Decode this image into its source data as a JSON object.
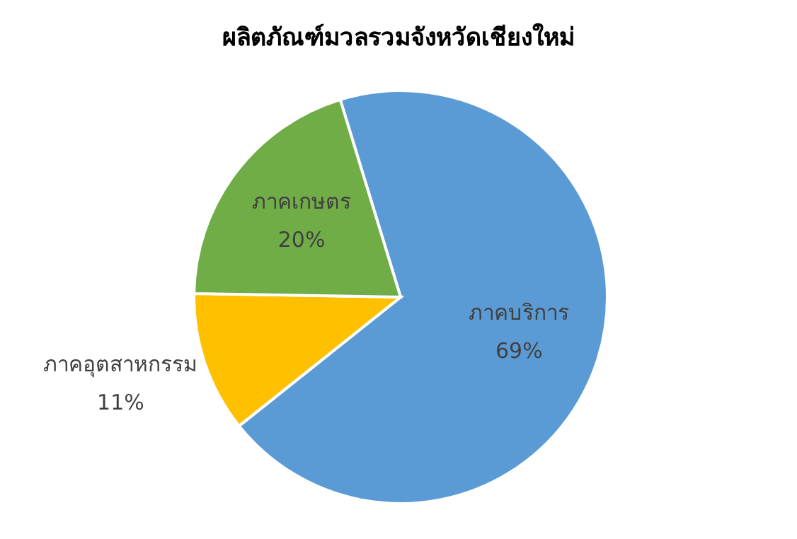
{
  "chart_data": {
    "type": "pie",
    "title": "ผลิตภัณฑ์มวลรวมจังหวัดเชียงใหม่",
    "categories": [
      "ภาคบริการ",
      "ภาคอุตสาหกรรม",
      "ภาคเกษตร"
    ],
    "values": [
      69,
      11,
      20
    ],
    "colors": [
      "#5b9bd5",
      "#ffc000",
      "#70ad47"
    ],
    "value_labels": [
      "69%",
      "11%",
      "20%"
    ]
  }
}
